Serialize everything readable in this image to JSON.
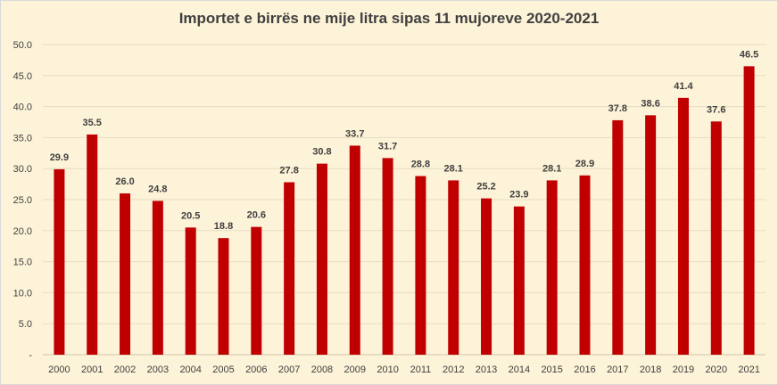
{
  "chart_data": {
    "type": "bar",
    "title": "Importet e birrës ne mije litra sipas 11 mujoreve 2020-2021",
    "xlabel": "",
    "ylabel": "",
    "categories": [
      "2000",
      "2001",
      "2002",
      "2003",
      "2004",
      "2005",
      "2006",
      "2007",
      "2008",
      "2009",
      "2010",
      "2011",
      "2012",
      "2013",
      "2014",
      "2015",
      "2016",
      "2017",
      "2018",
      "2019",
      "2020",
      "2021"
    ],
    "values": [
      29.9,
      35.5,
      26.0,
      24.8,
      20.5,
      18.8,
      20.6,
      27.8,
      30.8,
      33.7,
      31.7,
      28.8,
      28.1,
      25.2,
      23.9,
      28.1,
      28.9,
      37.8,
      38.6,
      41.4,
      37.6,
      46.5
    ],
    "data_labels": [
      "29.9",
      "35.5",
      "26.0",
      "24.8",
      "20.5",
      "18.8",
      "20.6",
      "27.8",
      "30.8",
      "33.7",
      "31.7",
      "28.8",
      "28.1",
      "25.2",
      "23.9",
      "28.1",
      "28.9",
      "37.8",
      "38.6",
      "41.4",
      "37.6",
      "46.5"
    ],
    "ylim": [
      0,
      50
    ],
    "y_ticks": [
      "-",
      "5.0",
      "10.0",
      "15.0",
      "20.0",
      "25.0",
      "30.0",
      "35.0",
      "40.0",
      "45.0",
      "50.0"
    ],
    "grid": true,
    "legend": "none",
    "bar_color": "#c00000",
    "background_color": "#fdf3d8",
    "gridline_color": "#e6dcc2"
  }
}
